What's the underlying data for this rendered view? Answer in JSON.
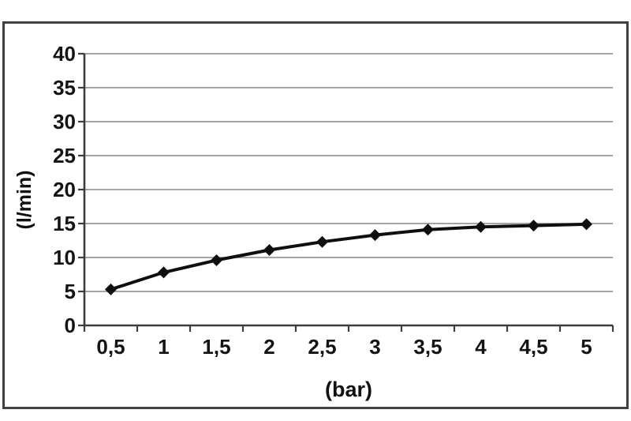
{
  "chart_data": {
    "type": "line",
    "title": "",
    "xlabel": "(bar)",
    "ylabel": "(l/min)",
    "x": [
      0.5,
      1,
      1.5,
      2,
      2.5,
      3,
      3.5,
      4,
      4.5,
      5
    ],
    "x_tick_labels": [
      "0,5",
      "1",
      "1,5",
      "2",
      "2,5",
      "3",
      "3,5",
      "4",
      "4,5",
      "5"
    ],
    "values": [
      5.3,
      7.8,
      9.6,
      11.1,
      12.3,
      13.3,
      14.1,
      14.5,
      14.7,
      14.9
    ],
    "ylim": [
      0,
      40
    ],
    "ytick_step": 5,
    "y_tick_labels": [
      "0",
      "5",
      "10",
      "15",
      "20",
      "25",
      "30",
      "35",
      "40"
    ],
    "grid": "horizontal-only",
    "legend_position": "none",
    "marker_style": "filled-diamond",
    "colors": {
      "line": "#0f0f0f",
      "marker": "#0f0f0f",
      "gridline": "#878787",
      "axis": "#3d3d3d",
      "frame_border": "#414141",
      "text": "#141414",
      "background": "#ffffff"
    }
  }
}
